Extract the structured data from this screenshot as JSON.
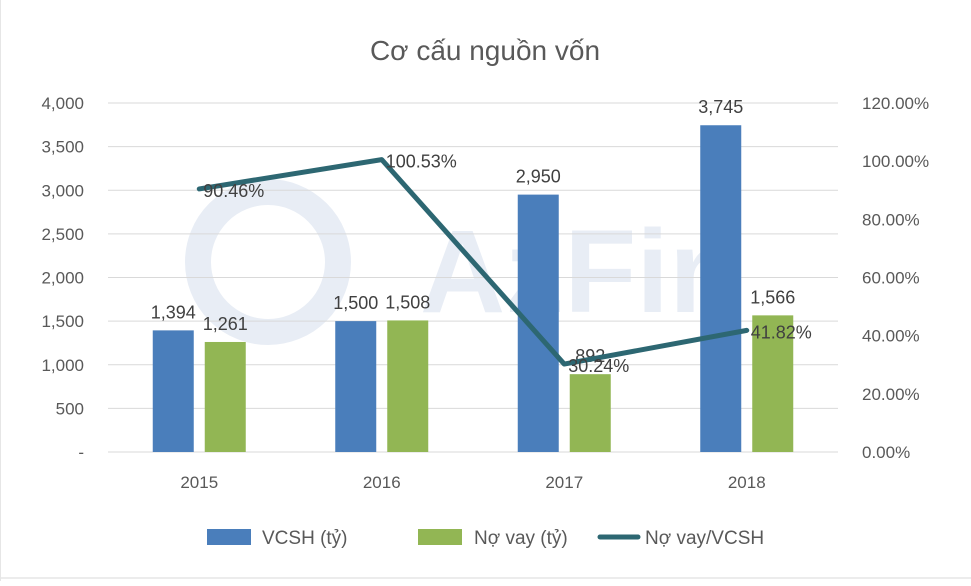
{
  "chart_data": {
    "type": "bar",
    "title": "Cơ cấu nguồn vốn",
    "categories": [
      "2015",
      "2016",
      "2017",
      "2018"
    ],
    "series": [
      {
        "name": "VCSH (tỷ)",
        "type": "bar",
        "axis": "left",
        "color": "#4A7EBB",
        "values": [
          1394,
          1500,
          2950,
          3745
        ],
        "labels": [
          "1,394",
          "1,500",
          "2,950",
          "3,745"
        ]
      },
      {
        "name": "Nợ vay (tỷ)",
        "type": "bar",
        "axis": "left",
        "color": "#92B654",
        "values": [
          1261,
          1508,
          892,
          1566
        ],
        "labels": [
          "1,261",
          "1,508",
          "892",
          "1,566"
        ]
      },
      {
        "name": "Nợ vay/VCSH",
        "type": "line",
        "axis": "right",
        "color": "#2D6772",
        "values": [
          90.46,
          100.53,
          30.24,
          41.82
        ],
        "labels": [
          "90.46%",
          "100.53%",
          "30.24%",
          "41.82%"
        ]
      }
    ],
    "y_left": {
      "min": 0,
      "max": 4000,
      "ticks": [
        "-",
        "500",
        "1,000",
        "1,500",
        "2,000",
        "2,500",
        "3,000",
        "3,500",
        "4,000"
      ]
    },
    "y_right": {
      "min": 0,
      "max": 120,
      "ticks": [
        "0.00%",
        "20.00%",
        "40.00%",
        "60.00%",
        "80.00%",
        "100.00%",
        "120.00%"
      ]
    },
    "grid": true,
    "legend": "bottom",
    "watermark": "AzFin"
  }
}
